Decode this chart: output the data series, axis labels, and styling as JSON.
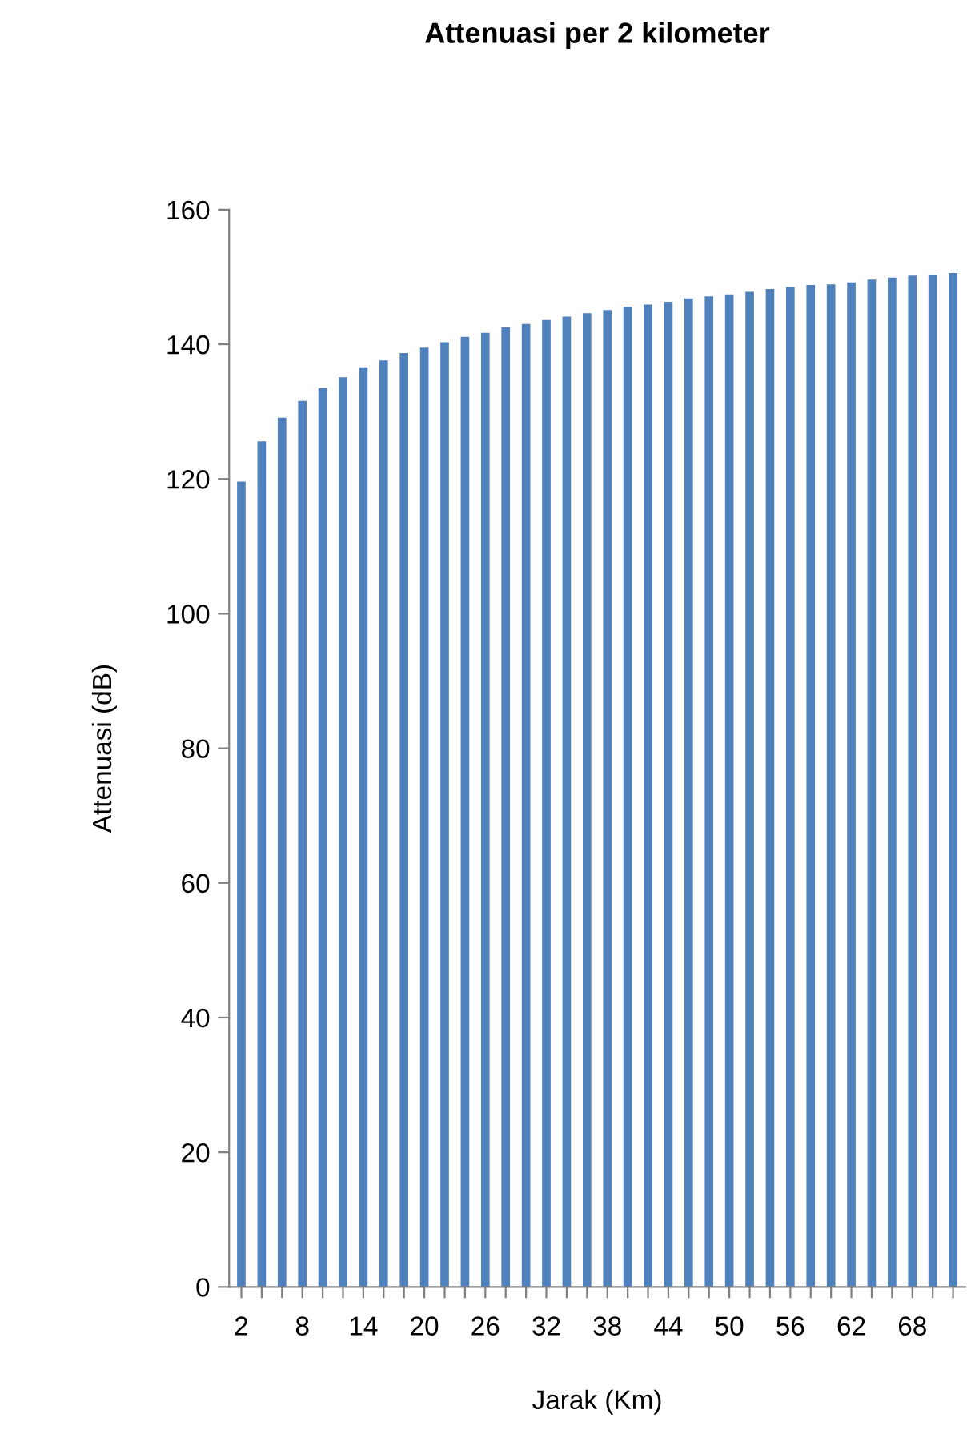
{
  "chart_data": {
    "type": "bar",
    "title": "Attenuasi per 2 kilometer",
    "xlabel": "Jarak (Km)",
    "ylabel": "Attenuasi (dB)",
    "categories": [
      "2",
      null,
      null,
      "8",
      null,
      null,
      "14",
      null,
      null,
      "20",
      null,
      null,
      "26",
      null,
      null,
      "32",
      null,
      null,
      "38",
      null,
      null,
      "44",
      null,
      null,
      "50",
      null,
      null,
      "56",
      null,
      null,
      "62",
      null,
      null,
      "68",
      null,
      null
    ],
    "values": [
      119.6,
      125.6,
      129.1,
      131.6,
      133.5,
      135.1,
      136.6,
      137.6,
      138.7,
      139.5,
      140.3,
      141.1,
      141.7,
      142.5,
      143.0,
      143.6,
      144.1,
      144.6,
      145.1,
      145.6,
      145.9,
      146.3,
      146.8,
      147.1,
      147.4,
      147.8,
      148.2,
      148.5,
      148.8,
      148.9,
      149.2,
      149.6,
      149.9,
      150.2,
      150.3,
      150.6
    ],
    "color": "#4f81bd",
    "ylim": [
      0,
      160
    ],
    "yticks": [
      0,
      20,
      40,
      60,
      80,
      100,
      120,
      140,
      160
    ],
    "grid": false,
    "legend": false
  }
}
